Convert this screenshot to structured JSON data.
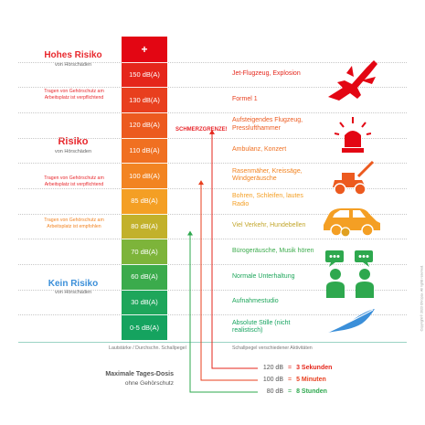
{
  "risk_zones": {
    "high": {
      "title": "Hohes Risiko",
      "subtitle": "von Hörschäden",
      "color": "#e8282d"
    },
    "mid": {
      "title": "Risiko",
      "subtitle": "von Hörschäden",
      "color": "#e8282d"
    },
    "low": {
      "title": "Kein Risiko",
      "subtitle": "von Hörschäden",
      "color": "#3b8fd9"
    }
  },
  "notes": {
    "mandatory_top": "Tragen von Gehörschutz am Arbeitsplatz ist verpflichtend",
    "mandatory_mid": "Tragen von Gehörschutz am Arbeitsplatz ist verpflichtend",
    "recommended": "Tragen von Gehörschutz am Arbeitsplatz ist empfohlen"
  },
  "scale": {
    "levels": [
      {
        "label": "+",
        "color": "#e30613"
      },
      {
        "label": "150 dB(A)",
        "color": "#e5261b"
      },
      {
        "label": "130 dB(A)",
        "color": "#e83f1e"
      },
      {
        "label": "120 dB(A)",
        "color": "#ec5a1f"
      },
      {
        "label": "110 dB(A)",
        "color": "#f07021"
      },
      {
        "label": "100 dB(A)",
        "color": "#f28422"
      },
      {
        "label": "85 dB(A)",
        "color": "#f49f24"
      },
      {
        "label": "80 dB(A)",
        "color": "#c2b12b"
      },
      {
        "label": "70 dB(A)",
        "color": "#7db43a"
      },
      {
        "label": "60 dB(A)",
        "color": "#3bab4c"
      },
      {
        "label": "30 dB(A)",
        "color": "#1ea65b"
      },
      {
        "label": "0-5 dB(A)",
        "color": "#15a35f"
      }
    ]
  },
  "pain_threshold": "SCHMERZGRENZE!",
  "sources": [
    {
      "text": "Jet-Flugzeug, Explosion",
      "color": "#e5261b"
    },
    {
      "text": "Formel 1",
      "color": "#e83f1e"
    },
    {
      "text": "Aufsteigendes Flugzeug, Presslufthammer",
      "color": "#ec5a1f"
    },
    {
      "text": "Ambulanz, Konzert",
      "color": "#f07021"
    },
    {
      "text": "Rasenmäher, Kreissäge, Windgeräusche",
      "color": "#f28422"
    },
    {
      "text": "Bohren, Schleifen, lautes Radio",
      "color": "#f49f24"
    },
    {
      "text": "Viel Verkehr, Hundebellen",
      "color": "#c2a62b"
    },
    {
      "text": "Bürogeräusche, Musik hören",
      "color": "#3bab4c"
    },
    {
      "text": "Normale Unterhaltung",
      "color": "#1ea65b"
    },
    {
      "text": "Aufnahmestudio",
      "color": "#1ea65b"
    },
    {
      "text": "Absolute Stille (nicht realistisch)",
      "color": "#15a35f"
    }
  ],
  "icons": [
    "fighter-jet-icon",
    "siren-icon",
    "lawnmower-icon",
    "traffic-icon",
    "conversation-icon",
    "feather-icon"
  ],
  "footer": {
    "left_caption": "Lautstärke / Durchschn. Schallpegel",
    "right_caption": "Schallpegel verschiedener Aktivitäten"
  },
  "dose": {
    "title": "Maximale Tages-Dosis",
    "subtitle": "ohne Gehörschutz",
    "rows": [
      {
        "level": "120 dB",
        "arrow": "=",
        "duration": "3 Sekunden",
        "color": "#e5261b"
      },
      {
        "level": "100 dB",
        "arrow": "=",
        "duration": "5 Minuten",
        "color": "#e83f1e"
      },
      {
        "level": "80 dB",
        "arrow": "=",
        "duration": "8 Stunden",
        "color": "#2ea84e"
      }
    ]
  },
  "copyright": "Copyright © 2023 Ohropax. All rights reserved."
}
